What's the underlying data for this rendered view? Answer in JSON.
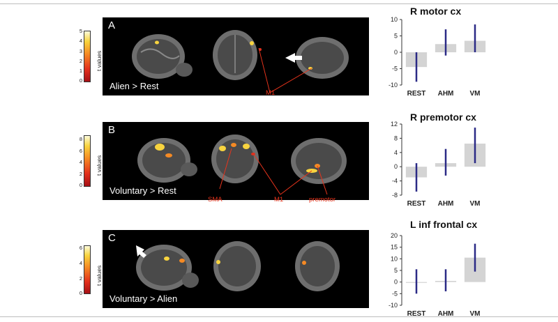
{
  "colors": {
    "bar_fill": "#d4d4d4",
    "error_bar": "#2b2a86",
    "roi_label": "#e8341c",
    "panel_bg": "#000000"
  },
  "colorbar_label": "t values",
  "panels": [
    {
      "letter": "A",
      "contrast": "Alien > Rest",
      "colorbar_ticks": [
        "5",
        "4",
        "3",
        "2",
        "1",
        "0"
      ],
      "region_labels": [
        "M1"
      ]
    },
    {
      "letter": "B",
      "contrast": "Voluntary > Rest",
      "colorbar_ticks": [
        "8",
        "6",
        "4",
        "2",
        "0"
      ],
      "region_labels": [
        "SMA",
        "M1",
        "premotor"
      ]
    },
    {
      "letter": "C",
      "contrast": "Voluntary > Alien",
      "colorbar_ticks": [
        "6",
        "4",
        "2",
        "0"
      ],
      "region_labels": []
    }
  ],
  "chart_data": [
    {
      "type": "bar",
      "title": "R motor cx",
      "categories": [
        "REST",
        "AHM",
        "VM"
      ],
      "values": [
        -4.5,
        2.5,
        3.5
      ],
      "error_low": [
        -9.0,
        -1.0,
        0.0
      ],
      "error_high": [
        0.0,
        7.0,
        8.5
      ],
      "ylim": [
        -10,
        10
      ],
      "yticks": [
        10,
        5,
        0,
        -5,
        -10
      ]
    },
    {
      "type": "bar",
      "title": "R premotor cx",
      "categories": [
        "REST",
        "AHM",
        "VM"
      ],
      "values": [
        -3.0,
        1.0,
        6.5
      ],
      "error_low": [
        -7.0,
        -2.5,
        1.0
      ],
      "error_high": [
        1.0,
        5.0,
        11.0
      ],
      "ylim": [
        -8,
        12
      ],
      "yticks": [
        12,
        8,
        4,
        0,
        -4,
        -8
      ]
    },
    {
      "type": "bar",
      "title": "L inf frontal cx",
      "categories": [
        "REST",
        "AHM",
        "VM"
      ],
      "values": [
        -0.2,
        0.5,
        10.5
      ],
      "error_low": [
        -5.0,
        -4.0,
        4.5
      ],
      "error_high": [
        5.5,
        5.5,
        16.5
      ],
      "ylim": [
        -10,
        20
      ],
      "yticks": [
        20,
        15,
        10,
        5,
        0,
        -5,
        -10
      ]
    }
  ]
}
